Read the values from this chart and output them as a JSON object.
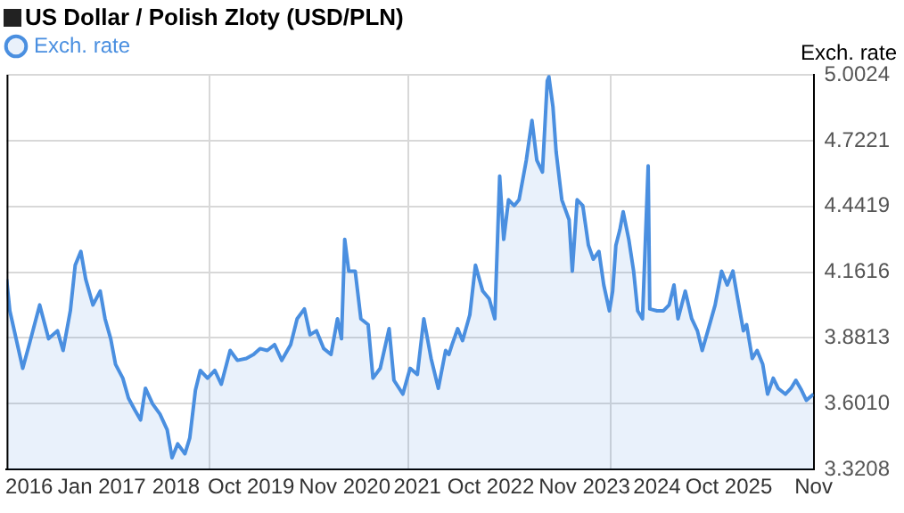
{
  "chart_data": {
    "type": "area",
    "title": "US Dollar / Polish Zloty (USD/PLN)",
    "ylabel": "Exch. rate",
    "legend": "top left",
    "grid": true,
    "marker": "none",
    "xlim": [
      2015.87,
      2025.87
    ],
    "xticks": [
      {
        "value": 2016.15,
        "label": "2016"
      },
      {
        "value": 2017.05,
        "label": "Jan 2017"
      },
      {
        "value": 2017.97,
        "label": "2018"
      },
      {
        "value": 2018.38,
        "label": null
      },
      {
        "value": 2018.9,
        "label": "Oct 2019"
      },
      {
        "value": 2020.06,
        "label": "Nov 2020"
      },
      {
        "value": 2020.85,
        "label": null
      },
      {
        "value": 2020.96,
        "label": "2021"
      },
      {
        "value": 2021.87,
        "label": "Oct 2022"
      },
      {
        "value": 2023.03,
        "label": "Nov 2023"
      },
      {
        "value": 2023.36,
        "label": null
      },
      {
        "value": 2023.93,
        "label": "2024"
      },
      {
        "value": 2024.82,
        "label": "Oct 2025"
      },
      {
        "value": 2025.87,
        "label": "Nov"
      }
    ],
    "ylim": [
      3.3208,
      5.0024
    ],
    "yticks": [
      {
        "value": 3.3208,
        "label": "3.3208"
      },
      {
        "value": 3.601,
        "label": "3.6010"
      },
      {
        "value": 3.8813,
        "label": "3.8813"
      },
      {
        "value": 4.1616,
        "label": "4.1616"
      },
      {
        "value": 4.4419,
        "label": "4.4419"
      },
      {
        "value": 4.7221,
        "label": "4.7221"
      },
      {
        "value": 5.0024,
        "label": "5.0024"
      }
    ],
    "series": [
      {
        "name": "Exch. rate",
        "color": "#4a8fe0",
        "x": [
          2015.87,
          2015.91,
          2016.07,
          2016.15,
          2016.28,
          2016.39,
          2016.5,
          2016.57,
          2016.66,
          2016.72,
          2016.79,
          2016.85,
          2016.94,
          2017.03,
          2017.09,
          2017.16,
          2017.22,
          2017.31,
          2017.38,
          2017.46,
          2017.53,
          2017.59,
          2017.68,
          2017.77,
          2017.86,
          2017.92,
          2017.99,
          2018.08,
          2018.14,
          2018.21,
          2018.27,
          2018.36,
          2018.45,
          2018.53,
          2018.64,
          2018.73,
          2018.84,
          2018.93,
          2019.01,
          2019.1,
          2019.19,
          2019.28,
          2019.39,
          2019.47,
          2019.56,
          2019.63,
          2019.71,
          2019.8,
          2019.89,
          2019.97,
          2020.02,
          2020.06,
          2020.11,
          2020.19,
          2020.26,
          2020.35,
          2020.41,
          2020.5,
          2020.61,
          2020.67,
          2020.78,
          2020.87,
          2020.96,
          2021.04,
          2021.13,
          2021.22,
          2021.31,
          2021.35,
          2021.39,
          2021.46,
          2021.52,
          2021.61,
          2021.68,
          2021.77,
          2021.85,
          2021.92,
          2021.98,
          2022.03,
          2022.09,
          2022.16,
          2022.22,
          2022.31,
          2022.38,
          2022.44,
          2022.51,
          2022.57,
          2022.59,
          2022.64,
          2022.68,
          2022.75,
          2022.84,
          2022.88,
          2022.94,
          2023.01,
          2023.08,
          2023.14,
          2023.21,
          2023.27,
          2023.34,
          2023.38,
          2023.42,
          2023.47,
          2023.51,
          2023.58,
          2023.64,
          2023.69,
          2023.75,
          2023.82,
          2023.84,
          2023.93,
          2024.01,
          2024.08,
          2024.14,
          2024.19,
          2024.28,
          2024.36,
          2024.43,
          2024.49,
          2024.56,
          2024.65,
          2024.73,
          2024.8,
          2024.87,
          2024.93,
          2025.0,
          2025.04,
          2025.11,
          2025.17,
          2025.24,
          2025.3,
          2025.37,
          2025.43,
          2025.52,
          2025.59,
          2025.65,
          2025.72,
          2025.78,
          2025.87
        ],
        "values": [
          4.132,
          3.997,
          3.752,
          3.853,
          4.022,
          3.878,
          3.912,
          3.828,
          3.997,
          4.191,
          4.25,
          4.132,
          4.022,
          4.081,
          3.963,
          3.878,
          3.769,
          3.71,
          3.625,
          3.574,
          3.532,
          3.667,
          3.6,
          3.557,
          3.49,
          3.371,
          3.43,
          3.388,
          3.456,
          3.659,
          3.743,
          3.71,
          3.743,
          3.684,
          3.828,
          3.786,
          3.794,
          3.811,
          3.836,
          3.828,
          3.853,
          3.786,
          3.853,
          3.963,
          4.005,
          3.895,
          3.912,
          3.836,
          3.811,
          3.963,
          3.878,
          4.301,
          4.166,
          4.166,
          3.963,
          3.938,
          3.71,
          3.752,
          3.921,
          3.701,
          3.642,
          3.752,
          3.726,
          3.963,
          3.794,
          3.667,
          3.828,
          3.811,
          3.853,
          3.921,
          3.87,
          3.98,
          4.191,
          4.081,
          4.048,
          3.963,
          4.571,
          4.301,
          4.47,
          4.445,
          4.47,
          4.639,
          4.808,
          4.639,
          4.588,
          4.977,
          4.994,
          4.867,
          4.673,
          4.47,
          4.385,
          4.166,
          4.47,
          4.445,
          4.276,
          4.217,
          4.25,
          4.107,
          3.997,
          4.081,
          4.276,
          4.343,
          4.419,
          4.301,
          4.166,
          3.997,
          3.963,
          4.614,
          4.005,
          3.997,
          3.997,
          4.022,
          4.107,
          3.963,
          4.081,
          3.963,
          3.912,
          3.828,
          3.912,
          4.022,
          4.166,
          4.107,
          4.166,
          4.048,
          3.912,
          3.938,
          3.794,
          3.828,
          3.769,
          3.642,
          3.71,
          3.667,
          3.642,
          3.667,
          3.701,
          3.659,
          3.616,
          3.642
        ]
      }
    ]
  }
}
